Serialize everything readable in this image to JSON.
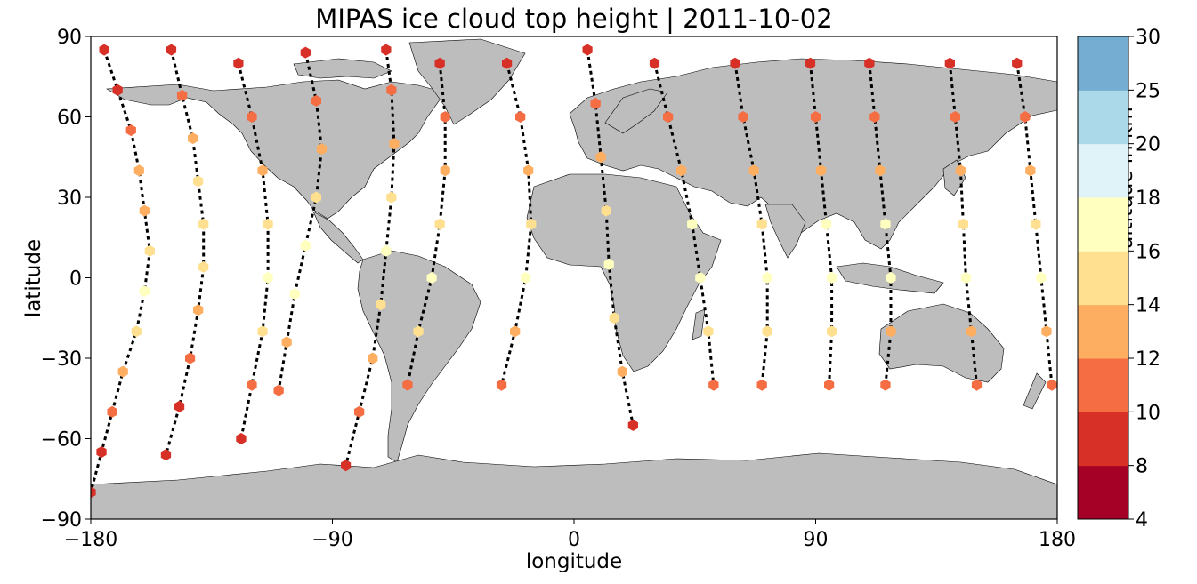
{
  "chart_data": {
    "type": "scatter",
    "title": "MIPAS ice cloud top height | 2011-10-02",
    "xlabel": "longitude",
    "ylabel": "latitude",
    "xlim": [
      -180,
      180
    ],
    "ylim": [
      -90,
      90
    ],
    "xticks": [
      "−180",
      "−90",
      "0",
      "90",
      "180"
    ],
    "yticks": [
      "90",
      "60",
      "30",
      "0",
      "−30",
      "−60",
      "−90"
    ],
    "colorbar": {
      "label": "altitude in km",
      "levels": [
        4,
        8,
        10,
        12,
        14,
        16,
        18,
        20,
        25,
        30
      ],
      "tick_labels": [
        "4",
        "8",
        "10",
        "12",
        "14",
        "16",
        "18",
        "20",
        "25",
        "30"
      ],
      "colors": [
        "#a50026",
        "#d73027",
        "#f46d43",
        "#fdae61",
        "#fee090",
        "#ffffbf",
        "#e0f3f8",
        "#abd9e9",
        "#74add1",
        "#4575b4",
        "#313695"
      ]
    },
    "map": {
      "land_color": "#bdbdbd",
      "background": "land/ocean world map"
    },
    "orbit_tracks": "dotted black lines",
    "tracks": [
      {
        "lon": [
          -175,
          -170,
          -165,
          -162,
          -160,
          -158,
          -160,
          -163,
          -168,
          -172,
          -176,
          -180
        ],
        "lat": [
          85,
          70,
          55,
          40,
          25,
          10,
          -5,
          -20,
          -35,
          -50,
          -65,
          -80
        ],
        "values": [
          8,
          9,
          10,
          12,
          13,
          15,
          16,
          14,
          12,
          10,
          9,
          8
        ]
      },
      {
        "lon": [
          -150,
          -146,
          -142,
          -140,
          -138,
          -138,
          -140,
          -143,
          -147,
          -152
        ],
        "lat": [
          85,
          68,
          52,
          36,
          20,
          4,
          -12,
          -30,
          -48,
          -66
        ],
        "values": [
          9,
          10,
          12,
          14,
          15,
          15,
          13,
          11,
          9,
          8
        ]
      },
      {
        "lon": [
          -125,
          -120,
          -116,
          -114,
          -114,
          -116,
          -120,
          -124
        ],
        "lat": [
          80,
          60,
          40,
          20,
          0,
          -20,
          -40,
          -60
        ],
        "values": [
          8,
          10,
          13,
          15,
          16,
          14,
          11,
          9
        ]
      },
      {
        "lon": [
          -100,
          -96,
          -94,
          -96,
          -100,
          -104,
          -107,
          -110
        ],
        "lat": [
          84,
          66,
          48,
          30,
          12,
          -6,
          -24,
          -42
        ],
        "values": [
          9,
          11,
          13,
          15,
          17,
          16,
          13,
          10
        ]
      },
      {
        "lon": [
          -70,
          -68,
          -67,
          -68,
          -70,
          -72,
          -75,
          -80,
          -85
        ],
        "lat": [
          85,
          70,
          50,
          30,
          10,
          -10,
          -30,
          -50,
          -70
        ],
        "values": [
          9,
          11,
          13,
          15,
          16,
          14,
          12,
          10,
          9
        ]
      },
      {
        "lon": [
          -50,
          -48,
          -48,
          -50,
          -53,
          -58,
          -62
        ],
        "lat": [
          80,
          60,
          40,
          20,
          0,
          -20,
          -40
        ],
        "values": [
          8,
          10,
          13,
          15,
          16,
          14,
          11
        ]
      },
      {
        "lon": [
          -25,
          -20,
          -17,
          -16,
          -18,
          -22,
          -27
        ],
        "lat": [
          80,
          60,
          40,
          20,
          0,
          -20,
          -40
        ],
        "values": [
          9,
          11,
          13,
          15,
          16,
          13,
          10
        ]
      },
      {
        "lon": [
          5,
          8,
          10,
          12,
          13,
          15,
          18,
          22
        ],
        "lat": [
          85,
          65,
          45,
          25,
          5,
          -15,
          -35,
          -55
        ],
        "values": [
          8,
          11,
          13,
          15,
          17,
          15,
          12,
          9
        ]
      },
      {
        "lon": [
          30,
          35,
          40,
          44,
          47,
          50,
          52
        ],
        "lat": [
          80,
          60,
          40,
          20,
          0,
          -20,
          -40
        ],
        "values": [
          9,
          11,
          13,
          16,
          17,
          14,
          11
        ]
      },
      {
        "lon": [
          60,
          63,
          67,
          70,
          72,
          72,
          70
        ],
        "lat": [
          80,
          60,
          40,
          20,
          0,
          -20,
          -40
        ],
        "values": [
          8,
          11,
          13,
          15,
          16,
          14,
          10
        ]
      },
      {
        "lon": [
          88,
          90,
          92,
          94,
          96,
          96,
          95
        ],
        "lat": [
          80,
          60,
          40,
          20,
          0,
          -20,
          -40
        ],
        "values": [
          9,
          11,
          13,
          16,
          17,
          14,
          10
        ]
      },
      {
        "lon": [
          110,
          112,
          114,
          116,
          118,
          118,
          116
        ],
        "lat": [
          80,
          60,
          40,
          20,
          0,
          -20,
          -40
        ],
        "values": [
          9,
          11,
          13,
          16,
          17,
          13,
          10
        ]
      },
      {
        "lon": [
          140,
          142,
          144,
          145,
          146,
          148,
          150
        ],
        "lat": [
          80,
          60,
          40,
          20,
          0,
          -20,
          -40
        ],
        "values": [
          9,
          11,
          13,
          15,
          16,
          13,
          10
        ]
      },
      {
        "lon": [
          165,
          168,
          170,
          172,
          174,
          176,
          178
        ],
        "lat": [
          80,
          60,
          40,
          20,
          0,
          -20,
          -40
        ],
        "values": [
          9,
          11,
          13,
          15,
          16,
          13,
          10
        ]
      }
    ]
  }
}
